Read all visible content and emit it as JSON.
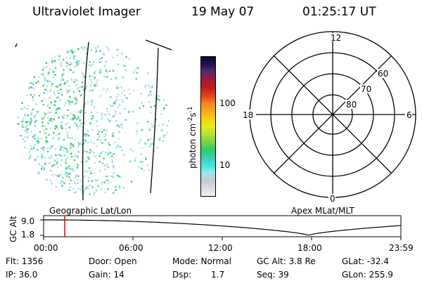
{
  "header": {
    "title": "Ultraviolet Imager",
    "date": "19 May 07",
    "time": "01:25:17 UT"
  },
  "colorbar": {
    "label_main": "photon cm",
    "label_exp1": "-2",
    "label_mid": "s",
    "label_exp2": "-1",
    "ticks": [
      "100",
      "10"
    ],
    "colors": [
      "#f2f2f2",
      "#d9dde3",
      "#c2c9d6",
      "#9be8ee",
      "#3fe3e3",
      "#3acfb0",
      "#2ecc66",
      "#7ad64a",
      "#b4e032",
      "#e6ec1e",
      "#f5d10f",
      "#f7a81c",
      "#f58420",
      "#e2401c",
      "#c01c1c",
      "#a41a3a",
      "#5a2a6a",
      "#1d1456",
      "#080630"
    ]
  },
  "polar": {
    "labels_mlt": [
      "12",
      "6",
      "0",
      "18"
    ],
    "labels_mlat": [
      "60",
      "70",
      "80"
    ]
  },
  "timeline": {
    "ylabel": "GC Alt",
    "yticks": [
      "9.0",
      "1.8"
    ],
    "left_title": "Geographic Lat/Lon",
    "right_title": "Apex MLat/MLT",
    "xticks": [
      "00:00",
      "06:00",
      "12:00",
      "18:00",
      "23:59"
    ],
    "current_marker": "01:25"
  },
  "stats": {
    "flt": "Flt: 1356",
    "ip": "IP: 36.0",
    "door": "Door: Open",
    "gain": "Gain: 14",
    "mode": "Mode: Normal",
    "dsp_label": "Dsp:",
    "dsp_value": "1.7",
    "gcalt": "GC Alt: 3.8 Re",
    "seq": "Seq: 39",
    "glat": "GLat: -32.4",
    "glon": "GLon: 255.9"
  }
}
